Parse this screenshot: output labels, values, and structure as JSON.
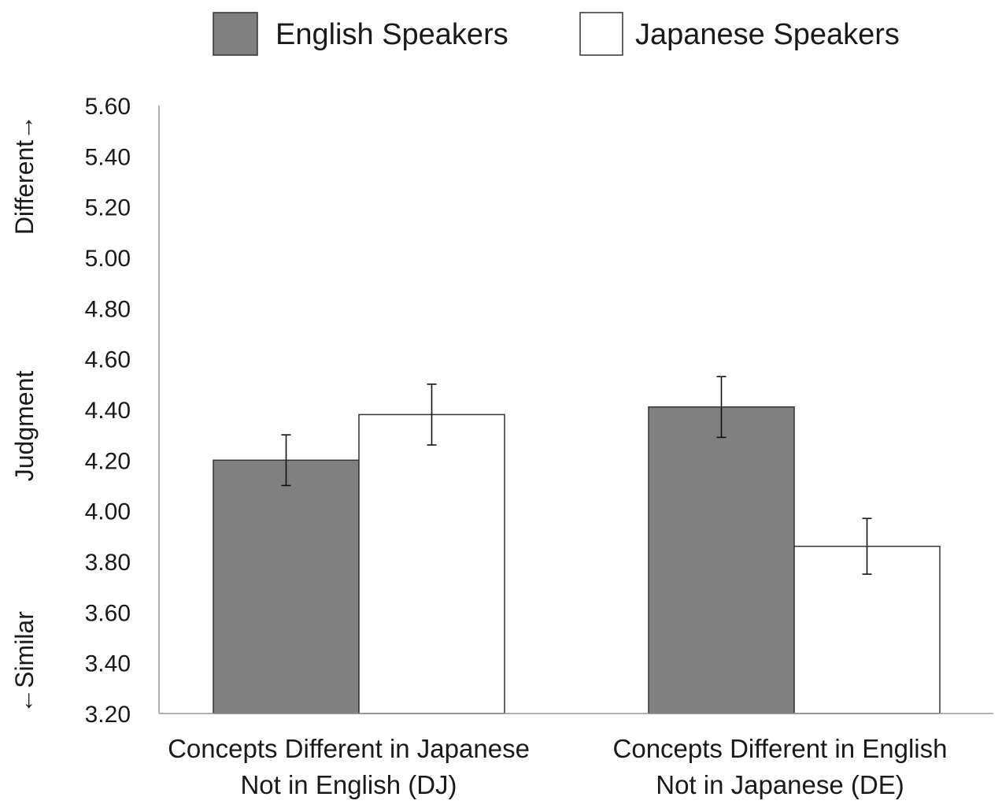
{
  "chart_data": {
    "type": "bar",
    "categories": [
      [
        "Concepts Different in Japanese",
        "Not in English (DJ)"
      ],
      [
        "Concepts Different in English",
        "Not in Japanese (DE)"
      ]
    ],
    "series": [
      {
        "name": "English Speakers",
        "color": "#808080",
        "values": [
          4.2,
          4.41
        ],
        "error": [
          0.1,
          0.12
        ]
      },
      {
        "name": "Japanese Speakers",
        "color": "#ffffff",
        "values": [
          4.38,
          3.86
        ],
        "error": [
          0.12,
          0.11
        ]
      }
    ],
    "ylabel_parts": [
      "←Similar",
      "Judgment",
      "Different→"
    ],
    "ylim": [
      3.2,
      5.6
    ],
    "yticks": [
      "3.20",
      "3.40",
      "3.60",
      "3.80",
      "4.00",
      "4.20",
      "4.40",
      "4.60",
      "4.80",
      "5.00",
      "5.20",
      "5.40",
      "5.60"
    ],
    "legend_position": "top",
    "grid": false
  }
}
